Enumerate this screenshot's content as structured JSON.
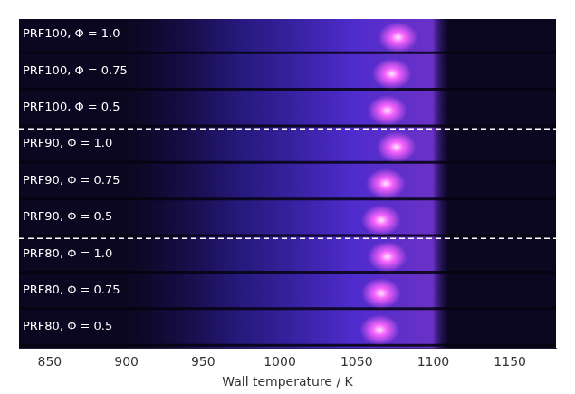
{
  "chart_data": {
    "type": "scatter",
    "x_label": "Wall temperature / K",
    "categories": [
      "PRF100, Φ = 1.0",
      "PRF100, Φ = 0.75",
      "PRF100, Φ = 0.5",
      "PRF90, Φ = 1.0",
      "PRF90, Φ = 0.75",
      "PRF90, Φ = 0.5",
      "PRF80, Φ = 1.0",
      "PRF80, Φ = 0.75",
      "PRF80, Φ = 0.5"
    ],
    "values": [
      1077,
      1073,
      1070,
      1076,
      1069,
      1066,
      1070,
      1066,
      1065
    ],
    "glow_region": [
      900,
      1110
    ],
    "color": "#ff66ff",
    "xlim": [
      830,
      1180
    ],
    "xticks": [
      850,
      900,
      950,
      1000,
      1050,
      1100,
      1150
    ],
    "grid": false,
    "tick_labels": "x"
  }
}
